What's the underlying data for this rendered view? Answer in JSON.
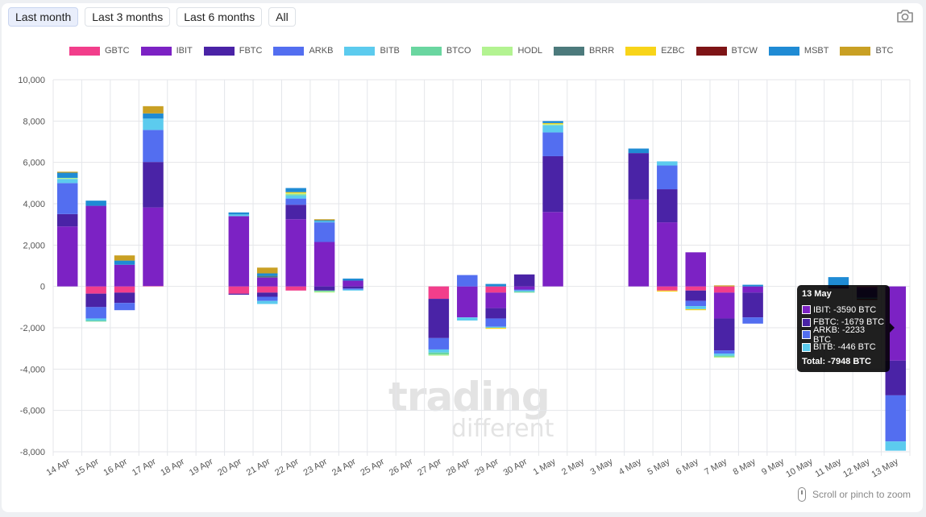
{
  "range_buttons": [
    {
      "label": "Last month",
      "active": true
    },
    {
      "label": "Last 3 months",
      "active": false
    },
    {
      "label": "Last 6 months",
      "active": false
    },
    {
      "label": "All",
      "active": false
    }
  ],
  "camera_icon": "camera-icon",
  "zoom_hint": "Scroll or pinch to zoom",
  "watermark": {
    "line1": "trading",
    "line2": "different"
  },
  "tooltip": {
    "title": "13 May",
    "rows": [
      {
        "text": "IBIT: -3590 BTC",
        "color": "#7c22c4"
      },
      {
        "text": "FBTC: -1679 BTC",
        "color": "#4a23a6"
      },
      {
        "text": "ARKB: -2233 BTC",
        "color": "#536ef0"
      },
      {
        "text": "BITB: -446 BTC",
        "color": "#5ccbee"
      }
    ],
    "total": "Total: -7948 BTC"
  },
  "chart_data": {
    "type": "bar",
    "stacked": true,
    "legend_position": "top",
    "grid": true,
    "ylim": [
      -8000,
      10000
    ],
    "yticks": [
      -8000,
      -6000,
      -4000,
      -2000,
      0,
      2000,
      4000,
      6000,
      8000,
      10000
    ],
    "ytick_labels": [
      "-8,000",
      "-6,000",
      "-4,000",
      "-2,000",
      "0",
      "2,000",
      "4,000",
      "6,000",
      "8,000",
      "10,000"
    ],
    "categories": [
      "14 Apr",
      "15 Apr",
      "16 Apr",
      "17 Apr",
      "18 Apr",
      "19 Apr",
      "20 Apr",
      "21 Apr",
      "22 Apr",
      "23 Apr",
      "24 Apr",
      "25 Apr",
      "26 Apr",
      "27 Apr",
      "28 Apr",
      "29 Apr",
      "30 Apr",
      "1 May",
      "2 May",
      "3 May",
      "4 May",
      "5 May",
      "6 May",
      "7 May",
      "8 May",
      "9 May",
      "10 May",
      "11 May",
      "12 May",
      "13 May"
    ],
    "series": [
      {
        "name": "GBTC",
        "color": "#f23e8b",
        "values": [
          0,
          -350,
          -300,
          20,
          0,
          0,
          -350,
          -300,
          -200,
          0,
          0,
          0,
          0,
          -600,
          0,
          -300,
          0,
          0,
          0,
          0,
          0,
          -200,
          -200,
          -300,
          0,
          0,
          0,
          0,
          -50,
          0
        ]
      },
      {
        "name": "IBIT",
        "color": "#7c22c4",
        "values": [
          2900,
          3900,
          1050,
          3800,
          0,
          0,
          3400,
          430,
          3250,
          2150,
          280,
          0,
          0,
          0,
          -1500,
          -750,
          -150,
          3600,
          0,
          0,
          4200,
          3100,
          1650,
          -1250,
          -300,
          0,
          0,
          -50,
          -100,
          -3590
        ]
      },
      {
        "name": "FBTC",
        "color": "#4a23a6",
        "values": [
          600,
          -650,
          -500,
          2200,
          0,
          0,
          -50,
          -200,
          700,
          -200,
          -100,
          0,
          0,
          -1900,
          0,
          -500,
          580,
          2700,
          0,
          0,
          2250,
          1600,
          -500,
          -1550,
          -1200,
          0,
          0,
          -50,
          -400,
          -1679
        ]
      },
      {
        "name": "ARKB",
        "color": "#536ef0",
        "values": [
          1500,
          -550,
          -350,
          1550,
          0,
          0,
          0,
          -200,
          300,
          950,
          -50,
          0,
          0,
          -550,
          550,
          -400,
          -50,
          1150,
          0,
          0,
          0,
          1150,
          -250,
          -150,
          -300,
          0,
          0,
          0,
          0,
          -2233
        ]
      },
      {
        "name": "BITB",
        "color": "#5ccbee",
        "values": [
          200,
          -100,
          0,
          550,
          0,
          0,
          80,
          -150,
          150,
          50,
          -50,
          0,
          0,
          -150,
          -150,
          -50,
          -50,
          350,
          0,
          0,
          0,
          200,
          -150,
          -100,
          0,
          0,
          0,
          0,
          -50,
          -446
        ]
      },
      {
        "name": "BTCO",
        "color": "#6ad6a0",
        "values": [
          0,
          -50,
          0,
          0,
          0,
          0,
          0,
          0,
          50,
          -50,
          0,
          0,
          0,
          -100,
          0,
          0,
          -50,
          0,
          0,
          0,
          0,
          0,
          0,
          -50,
          0,
          0,
          0,
          0,
          0,
          0
        ]
      },
      {
        "name": "HODL",
        "color": "#b3f391",
        "values": [
          50,
          0,
          0,
          0,
          0,
          0,
          0,
          0,
          50,
          -50,
          0,
          0,
          0,
          -50,
          0,
          0,
          0,
          50,
          0,
          0,
          0,
          0,
          0,
          -50,
          0,
          0,
          0,
          0,
          0,
          0
        ]
      },
      {
        "name": "BRRR",
        "color": "#4c7a7c",
        "values": [
          0,
          0,
          0,
          0,
          0,
          0,
          0,
          80,
          0,
          0,
          0,
          0,
          0,
          0,
          0,
          0,
          0,
          0,
          0,
          0,
          0,
          0,
          0,
          0,
          0,
          0,
          0,
          0,
          0,
          0
        ]
      },
      {
        "name": "EZBC",
        "color": "#f8d419",
        "values": [
          0,
          0,
          0,
          0,
          0,
          0,
          0,
          0,
          60,
          0,
          0,
          0,
          0,
          0,
          0,
          -50,
          0,
          50,
          0,
          0,
          0,
          -50,
          -50,
          0,
          0,
          0,
          0,
          0,
          0,
          0
        ]
      },
      {
        "name": "BTCW",
        "color": "#7e1416",
        "values": [
          0,
          0,
          0,
          0,
          0,
          0,
          0,
          0,
          0,
          0,
          0,
          0,
          0,
          0,
          0,
          0,
          0,
          0,
          0,
          0,
          0,
          0,
          0,
          0,
          0,
          0,
          0,
          0,
          -50,
          0
        ]
      },
      {
        "name": "MSBT",
        "color": "#1f8bd4",
        "values": [
          250,
          250,
          200,
          250,
          0,
          0,
          100,
          120,
          200,
          50,
          100,
          0,
          0,
          0,
          0,
          120,
          0,
          100,
          0,
          0,
          220,
          0,
          0,
          0,
          80,
          0,
          0,
          450,
          0,
          0
        ]
      },
      {
        "name": "BTC",
        "color": "#c9a024",
        "values": [
          50,
          0,
          250,
          350,
          0,
          0,
          0,
          280,
          0,
          50,
          0,
          0,
          0,
          0,
          0,
          0,
          0,
          0,
          0,
          0,
          0,
          0,
          0,
          50,
          0,
          0,
          0,
          0,
          0,
          0
        ]
      }
    ]
  }
}
